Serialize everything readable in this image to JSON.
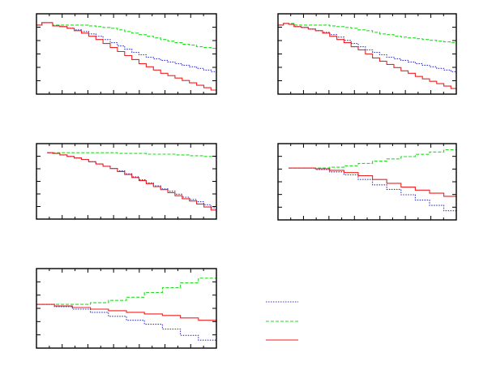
{
  "colors": {
    "blue": "#3333cc",
    "green": "#22dd22",
    "red": "#ee2222"
  },
  "legend": {
    "placement": "bottom-right",
    "entries": [
      {
        "name": "",
        "color": "#3333cc",
        "style": "dotted"
      },
      {
        "name": "",
        "color": "#22dd22",
        "style": "dashed"
      },
      {
        "name": "",
        "color": "#ee2222",
        "style": "solid"
      }
    ]
  },
  "chart_data": [
    {
      "type": "line",
      "step": true,
      "grid": false,
      "xlim": [
        0,
        1
      ],
      "ylim": [
        0,
        1
      ],
      "ticks": {
        "x": 14,
        "y": 6
      },
      "series": [
        {
          "color": "#22dd22",
          "style": "dashed",
          "x": [
            0,
            0.03,
            0.06,
            0.09,
            0.13,
            0.17,
            0.21,
            0.25,
            0.29,
            0.33,
            0.37,
            0.41,
            0.45,
            0.49,
            0.53,
            0.57,
            0.61,
            0.65,
            0.69,
            0.73,
            0.77,
            0.81,
            0.85,
            0.89,
            0.93,
            0.97,
            1
          ],
          "y": [
            0.86,
            0.89,
            0.89,
            0.86,
            0.86,
            0.86,
            0.86,
            0.86,
            0.85,
            0.84,
            0.83,
            0.82,
            0.8,
            0.78,
            0.76,
            0.74,
            0.72,
            0.7,
            0.68,
            0.66,
            0.64,
            0.62,
            0.61,
            0.59,
            0.58,
            0.57,
            0.56
          ]
        },
        {
          "color": "#3333cc",
          "style": "dotted",
          "x": [
            0,
            0.03,
            0.06,
            0.09,
            0.13,
            0.17,
            0.21,
            0.25,
            0.29,
            0.33,
            0.37,
            0.41,
            0.45,
            0.49,
            0.53,
            0.57,
            0.61,
            0.65,
            0.69,
            0.73,
            0.77,
            0.81,
            0.85,
            0.89,
            0.93,
            0.97,
            1
          ],
          "y": [
            0.86,
            0.89,
            0.89,
            0.85,
            0.84,
            0.82,
            0.8,
            0.78,
            0.75,
            0.72,
            0.68,
            0.64,
            0.6,
            0.56,
            0.52,
            0.49,
            0.46,
            0.44,
            0.42,
            0.4,
            0.38,
            0.36,
            0.34,
            0.32,
            0.3,
            0.28,
            0.26
          ]
        },
        {
          "color": "#ee2222",
          "style": "solid",
          "x": [
            0,
            0.03,
            0.06,
            0.09,
            0.13,
            0.17,
            0.21,
            0.25,
            0.29,
            0.33,
            0.37,
            0.41,
            0.45,
            0.49,
            0.53,
            0.57,
            0.61,
            0.65,
            0.69,
            0.73,
            0.77,
            0.81,
            0.85,
            0.89,
            0.93,
            0.97,
            1
          ],
          "y": [
            0.86,
            0.89,
            0.89,
            0.85,
            0.84,
            0.82,
            0.79,
            0.76,
            0.72,
            0.68,
            0.63,
            0.58,
            0.53,
            0.48,
            0.43,
            0.38,
            0.34,
            0.3,
            0.26,
            0.23,
            0.2,
            0.17,
            0.14,
            0.11,
            0.08,
            0.05,
            0.03
          ]
        }
      ]
    },
    {
      "type": "line",
      "step": true,
      "grid": false,
      "xlim": [
        0,
        1
      ],
      "ylim": [
        0,
        1
      ],
      "ticks": {
        "x": 14,
        "y": 6
      },
      "series": [
        {
          "color": "#22dd22",
          "style": "dashed",
          "x": [
            0,
            0.03,
            0.06,
            0.09,
            0.13,
            0.17,
            0.21,
            0.25,
            0.29,
            0.33,
            0.37,
            0.41,
            0.45,
            0.49,
            0.53,
            0.57,
            0.61,
            0.65,
            0.69,
            0.73,
            0.77,
            0.81,
            0.85,
            0.89,
            0.93,
            0.97,
            1
          ],
          "y": [
            0.86,
            0.88,
            0.88,
            0.86,
            0.86,
            0.86,
            0.86,
            0.86,
            0.85,
            0.84,
            0.83,
            0.82,
            0.8,
            0.79,
            0.77,
            0.75,
            0.74,
            0.72,
            0.71,
            0.7,
            0.69,
            0.68,
            0.67,
            0.66,
            0.65,
            0.64,
            0.63
          ]
        },
        {
          "color": "#3333cc",
          "style": "dotted",
          "x": [
            0,
            0.03,
            0.06,
            0.09,
            0.13,
            0.17,
            0.21,
            0.25,
            0.29,
            0.33,
            0.37,
            0.41,
            0.45,
            0.49,
            0.53,
            0.57,
            0.61,
            0.65,
            0.69,
            0.73,
            0.77,
            0.81,
            0.85,
            0.89,
            0.93,
            0.97,
            1
          ],
          "y": [
            0.86,
            0.88,
            0.87,
            0.84,
            0.83,
            0.81,
            0.79,
            0.77,
            0.74,
            0.71,
            0.67,
            0.63,
            0.59,
            0.55,
            0.52,
            0.49,
            0.46,
            0.44,
            0.42,
            0.4,
            0.38,
            0.36,
            0.34,
            0.32,
            0.3,
            0.28,
            0.26
          ]
        },
        {
          "color": "#ee2222",
          "style": "solid",
          "x": [
            0,
            0.03,
            0.06,
            0.09,
            0.13,
            0.17,
            0.21,
            0.25,
            0.29,
            0.33,
            0.37,
            0.41,
            0.45,
            0.49,
            0.53,
            0.57,
            0.61,
            0.65,
            0.69,
            0.73,
            0.77,
            0.81,
            0.85,
            0.89,
            0.93,
            0.97,
            1
          ],
          "y": [
            0.86,
            0.88,
            0.87,
            0.84,
            0.83,
            0.81,
            0.79,
            0.76,
            0.72,
            0.68,
            0.64,
            0.59,
            0.55,
            0.5,
            0.45,
            0.41,
            0.37,
            0.33,
            0.29,
            0.26,
            0.22,
            0.19,
            0.16,
            0.13,
            0.1,
            0.07,
            0.04
          ]
        }
      ]
    },
    {
      "type": "line",
      "step": true,
      "grid": false,
      "xlim": [
        0,
        1
      ],
      "ylim": [
        0,
        1
      ],
      "ticks": {
        "x": 14,
        "y": 6
      },
      "series": [
        {
          "color": "#22dd22",
          "style": "dashed",
          "x": [
            0.06,
            0.13,
            0.21,
            0.29,
            0.37,
            0.45,
            0.53,
            0.61,
            0.69,
            0.77,
            0.85,
            0.93,
            1
          ],
          "y": [
            0.88,
            0.88,
            0.88,
            0.88,
            0.88,
            0.87,
            0.87,
            0.86,
            0.86,
            0.85,
            0.84,
            0.83,
            0.82
          ]
        },
        {
          "color": "#3333cc",
          "style": "dotted",
          "x": [
            0.06,
            0.09,
            0.13,
            0.17,
            0.21,
            0.25,
            0.29,
            0.33,
            0.37,
            0.41,
            0.45,
            0.49,
            0.53,
            0.57,
            0.61,
            0.65,
            0.69,
            0.73,
            0.77,
            0.81,
            0.85,
            0.89,
            0.93,
            0.97,
            1
          ],
          "y": [
            0.88,
            0.87,
            0.85,
            0.83,
            0.81,
            0.79,
            0.76,
            0.73,
            0.7,
            0.67,
            0.64,
            0.6,
            0.56,
            0.52,
            0.48,
            0.44,
            0.4,
            0.37,
            0.33,
            0.29,
            0.26,
            0.23,
            0.19,
            0.15,
            0.12
          ]
        },
        {
          "color": "#ee2222",
          "style": "solid",
          "x": [
            0.06,
            0.09,
            0.13,
            0.17,
            0.21,
            0.25,
            0.29,
            0.33,
            0.37,
            0.41,
            0.45,
            0.49,
            0.53,
            0.57,
            0.61,
            0.65,
            0.69,
            0.73,
            0.77,
            0.81,
            0.85,
            0.89,
            0.93,
            0.97,
            1
          ],
          "y": [
            0.88,
            0.87,
            0.85,
            0.83,
            0.81,
            0.79,
            0.76,
            0.73,
            0.7,
            0.67,
            0.63,
            0.59,
            0.55,
            0.51,
            0.47,
            0.43,
            0.39,
            0.35,
            0.31,
            0.27,
            0.24,
            0.2,
            0.16,
            0.12,
            0.08
          ]
        }
      ]
    },
    {
      "type": "line",
      "step": true,
      "grid": false,
      "xlim": [
        0,
        1
      ],
      "ylim": [
        0,
        1
      ],
      "ticks": {
        "x": 14,
        "y": 6
      },
      "series": [
        {
          "color": "#22dd22",
          "style": "dashed",
          "x": [
            0.06,
            0.13,
            0.21,
            0.29,
            0.37,
            0.45,
            0.53,
            0.61,
            0.69,
            0.77,
            0.85,
            0.93,
            1
          ],
          "y": [
            0.68,
            0.68,
            0.68,
            0.69,
            0.71,
            0.74,
            0.77,
            0.8,
            0.83,
            0.86,
            0.89,
            0.92,
            0.96
          ]
        },
        {
          "color": "#3333cc",
          "style": "dotted",
          "x": [
            0.06,
            0.13,
            0.21,
            0.29,
            0.37,
            0.45,
            0.53,
            0.61,
            0.69,
            0.77,
            0.85,
            0.93,
            1
          ],
          "y": [
            0.68,
            0.68,
            0.66,
            0.63,
            0.59,
            0.53,
            0.46,
            0.4,
            0.33,
            0.26,
            0.19,
            0.12,
            0.03
          ]
        },
        {
          "color": "#ee2222",
          "style": "solid",
          "x": [
            0.06,
            0.13,
            0.21,
            0.29,
            0.37,
            0.45,
            0.53,
            0.61,
            0.69,
            0.77,
            0.85,
            0.93,
            1
          ],
          "y": [
            0.68,
            0.68,
            0.67,
            0.65,
            0.62,
            0.58,
            0.53,
            0.48,
            0.43,
            0.39,
            0.35,
            0.31,
            0.25
          ]
        }
      ]
    },
    {
      "type": "line",
      "step": true,
      "grid": false,
      "xlim": [
        0,
        1
      ],
      "ylim": [
        0,
        1
      ],
      "ticks": {
        "x": 14,
        "y": 6
      },
      "series": [
        {
          "color": "#22dd22",
          "style": "dashed",
          "x": [
            0,
            0.1,
            0.2,
            0.3,
            0.4,
            0.5,
            0.6,
            0.7,
            0.8,
            0.9,
            1
          ],
          "y": [
            0.55,
            0.55,
            0.55,
            0.57,
            0.6,
            0.64,
            0.7,
            0.76,
            0.82,
            0.88,
            0.92
          ]
        },
        {
          "color": "#3333cc",
          "style": "dotted",
          "x": [
            0,
            0.1,
            0.2,
            0.3,
            0.4,
            0.5,
            0.6,
            0.7,
            0.8,
            0.9,
            1
          ],
          "y": [
            0.55,
            0.52,
            0.49,
            0.45,
            0.4,
            0.35,
            0.3,
            0.24,
            0.16,
            0.1,
            0.02
          ]
        },
        {
          "color": "#ee2222",
          "style": "solid",
          "x": [
            0,
            0.1,
            0.2,
            0.3,
            0.4,
            0.5,
            0.6,
            0.7,
            0.8,
            0.9,
            1
          ],
          "y": [
            0.55,
            0.53,
            0.51,
            0.49,
            0.47,
            0.45,
            0.43,
            0.41,
            0.38,
            0.35,
            0.26
          ]
        }
      ]
    }
  ]
}
